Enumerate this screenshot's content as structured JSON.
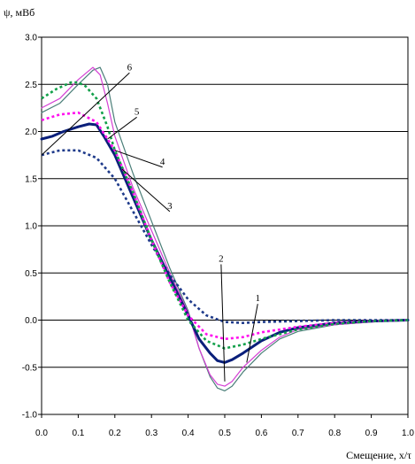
{
  "chart_data": {
    "type": "line",
    "title": "",
    "ylabel": "ψ, мВб",
    "xlabel": "Смещение, x/τ",
    "xlim": [
      0.0,
      1.0
    ],
    "ylim": [
      -1.0,
      3.0
    ],
    "grid": "horizontal",
    "x_ticks": [
      0.0,
      0.1,
      0.2,
      0.3,
      0.4,
      0.5,
      0.6,
      0.7,
      0.8,
      0.9,
      1.0
    ],
    "x_tick_labels": [
      "0.0",
      "0.1",
      "0.2",
      "0.3",
      "0.4",
      "0.5",
      "0.6",
      "0.7",
      "0.8",
      "0.9",
      "1.0"
    ],
    "y_ticks": [
      -1.0,
      -0.5,
      0.0,
      0.5,
      1.0,
      1.5,
      2.0,
      2.5,
      3.0
    ],
    "y_tick_labels": [
      "-1.0",
      "-0.5",
      "0.0",
      "0.5",
      "1.0",
      "1.5",
      "2.0",
      "2.5",
      "3.0"
    ],
    "y_tick_label_colors": {
      "-1.0": "#d00000",
      "-0.5": "#d00000"
    },
    "series": [
      {
        "label": "1",
        "color": "#4a7e78",
        "style": "solid",
        "width": 1.2,
        "x": [
          0,
          0.05,
          0.1,
          0.14,
          0.16,
          0.18,
          0.2,
          0.25,
          0.3,
          0.35,
          0.4,
          0.43,
          0.46,
          0.48,
          0.5,
          0.52,
          0.55,
          0.6,
          0.65,
          0.7,
          0.8,
          0.9,
          1.0
        ],
        "y": [
          2.2,
          2.3,
          2.5,
          2.65,
          2.68,
          2.5,
          2.1,
          1.55,
          1.05,
          0.55,
          0.1,
          -0.3,
          -0.6,
          -0.72,
          -0.75,
          -0.7,
          -0.55,
          -0.35,
          -0.2,
          -0.12,
          -0.05,
          -0.02,
          0.0
        ]
      },
      {
        "label": "2",
        "color": "#d43fd4",
        "style": "solid",
        "width": 1.2,
        "x": [
          0,
          0.05,
          0.1,
          0.14,
          0.16,
          0.18,
          0.2,
          0.25,
          0.3,
          0.35,
          0.4,
          0.43,
          0.46,
          0.48,
          0.5,
          0.52,
          0.55,
          0.6,
          0.65,
          0.7,
          0.8,
          0.9,
          1.0
        ],
        "y": [
          2.25,
          2.35,
          2.55,
          2.68,
          2.6,
          2.3,
          1.95,
          1.4,
          0.95,
          0.5,
          0.08,
          -0.3,
          -0.58,
          -0.68,
          -0.7,
          -0.65,
          -0.5,
          -0.32,
          -0.18,
          -0.1,
          -0.05,
          -0.02,
          0.0
        ]
      },
      {
        "label": "3",
        "color": "#1e3a8a",
        "style": "dotted",
        "width": 2.6,
        "x": [
          0,
          0.05,
          0.1,
          0.15,
          0.2,
          0.25,
          0.3,
          0.35,
          0.4,
          0.45,
          0.5,
          0.55,
          0.6,
          0.7,
          0.8,
          0.9,
          1.0
        ],
        "y": [
          1.75,
          1.8,
          1.8,
          1.72,
          1.5,
          1.15,
          0.8,
          0.48,
          0.22,
          0.05,
          -0.02,
          -0.03,
          -0.02,
          -0.01,
          0.0,
          0.0,
          0.0
        ]
      },
      {
        "label": "4",
        "color": "#0a1f7a",
        "style": "solid",
        "width": 3.0,
        "x": [
          0,
          0.03,
          0.06,
          0.1,
          0.13,
          0.15,
          0.17,
          0.2,
          0.25,
          0.3,
          0.35,
          0.4,
          0.43,
          0.46,
          0.48,
          0.5,
          0.52,
          0.55,
          0.6,
          0.65,
          0.7,
          0.8,
          0.9,
          1.0
        ],
        "y": [
          1.92,
          1.95,
          2.0,
          2.05,
          2.08,
          2.07,
          1.95,
          1.75,
          1.3,
          0.85,
          0.45,
          0.05,
          -0.2,
          -0.35,
          -0.43,
          -0.45,
          -0.42,
          -0.35,
          -0.22,
          -0.13,
          -0.08,
          -0.03,
          -0.01,
          0.0
        ]
      },
      {
        "label": "5",
        "color": "#ff10ee",
        "style": "dotted",
        "width": 2.6,
        "x": [
          0,
          0.05,
          0.1,
          0.15,
          0.2,
          0.25,
          0.3,
          0.35,
          0.4,
          0.45,
          0.5,
          0.55,
          0.6,
          0.7,
          0.8,
          0.9,
          1.0
        ],
        "y": [
          2.12,
          2.18,
          2.2,
          2.1,
          1.8,
          1.35,
          0.85,
          0.4,
          0.05,
          -0.15,
          -0.2,
          -0.18,
          -0.13,
          -0.07,
          -0.03,
          -0.01,
          0.0
        ]
      },
      {
        "label": "6",
        "color": "#12a04a",
        "style": "dotted",
        "width": 2.6,
        "x": [
          0,
          0.04,
          0.08,
          0.1,
          0.12,
          0.15,
          0.18,
          0.2,
          0.25,
          0.3,
          0.35,
          0.4,
          0.45,
          0.5,
          0.55,
          0.6,
          0.7,
          0.8,
          0.9,
          1.0
        ],
        "y": [
          2.35,
          2.45,
          2.52,
          2.52,
          2.48,
          2.35,
          2.05,
          1.8,
          1.35,
          0.85,
          0.4,
          0.0,
          -0.22,
          -0.3,
          -0.26,
          -0.2,
          -0.1,
          -0.04,
          -0.01,
          0.0
        ]
      }
    ],
    "annotations": [
      {
        "text": "1",
        "point": [
          0.56,
          -0.45
        ],
        "label_at": [
          0.59,
          0.2
        ]
      },
      {
        "text": "2",
        "point": [
          0.5,
          -0.65
        ],
        "label_at": [
          0.49,
          0.62
        ]
      },
      {
        "text": "3",
        "point": [
          0.22,
          1.6
        ],
        "label_at": [
          0.35,
          1.18
        ]
      },
      {
        "text": "4",
        "point": [
          0.2,
          1.8
        ],
        "label_at": [
          0.33,
          1.65
        ]
      },
      {
        "text": "5",
        "point": [
          0.18,
          1.92
        ],
        "label_at": [
          0.26,
          2.18
        ]
      },
      {
        "text": "6",
        "point": [
          0.0,
          1.75
        ],
        "label_at": [
          0.24,
          2.65
        ]
      }
    ]
  }
}
